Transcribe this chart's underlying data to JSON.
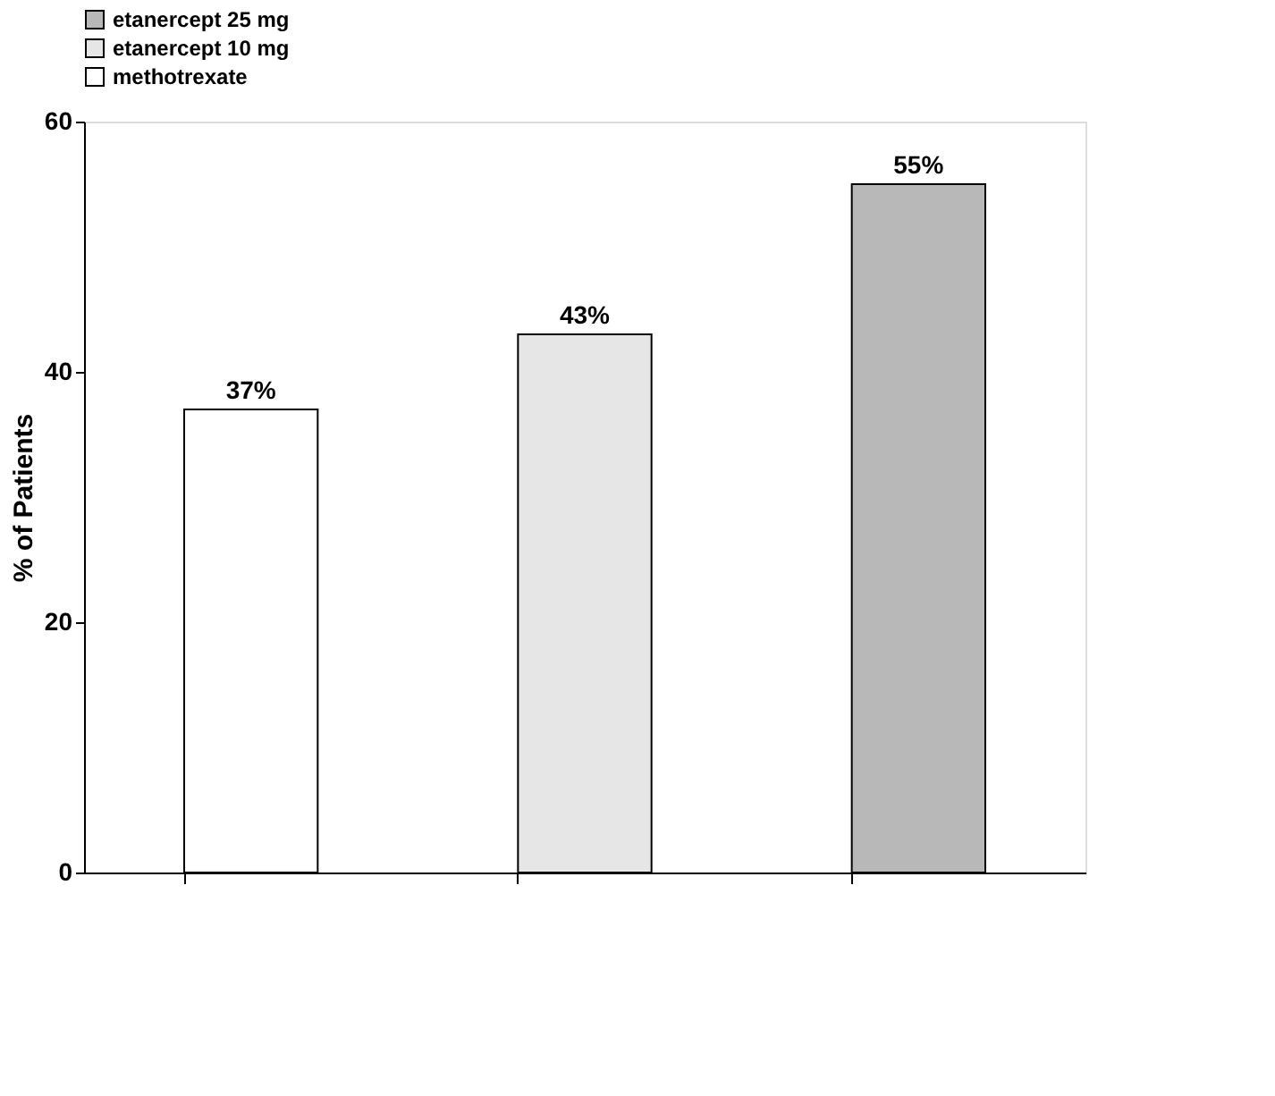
{
  "chart_data": {
    "type": "bar",
    "ylabel": "% of Patients",
    "categories": [
      null,
      null,
      null
    ],
    "series": [
      {
        "name": "etanercept 25 mg",
        "color": "#b8b8b8",
        "values": [
          null,
          null,
          55
        ],
        "value_labels": [
          null,
          null,
          "55%"
        ]
      },
      {
        "name": "etanercept 10 mg",
        "color": "#e6e6e6",
        "values": [
          null,
          43,
          null
        ],
        "value_labels": [
          null,
          "43%",
          null
        ]
      },
      {
        "name": "methotrexate",
        "color": "#ffffff",
        "values": [
          37,
          null,
          null
        ],
        "value_labels": [
          "37%",
          null,
          null
        ]
      }
    ],
    "ylim": [
      0,
      60
    ],
    "yticks": [
      0,
      20,
      40,
      60
    ],
    "grid": false,
    "legend": "top"
  }
}
